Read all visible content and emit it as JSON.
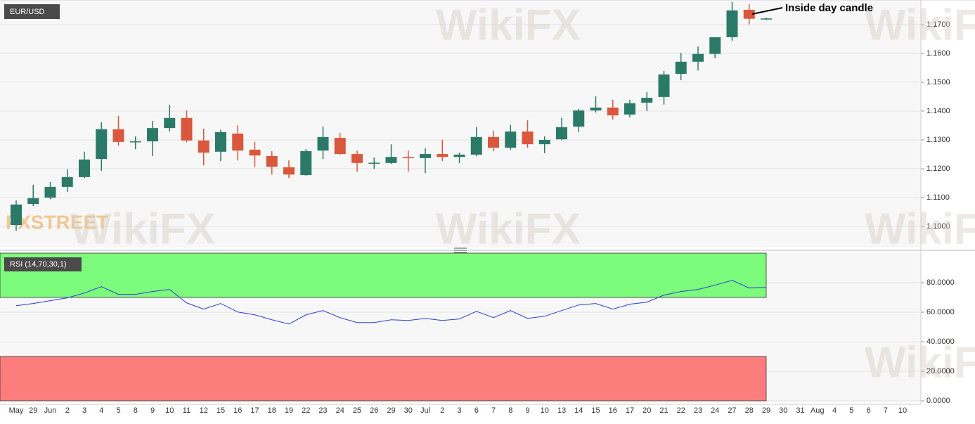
{
  "chart_data": [
    {
      "type": "candlestick",
      "title": "EUR/USD",
      "annotation": "Inside day candle",
      "watermark": "FXSTREET",
      "logo": "WikiFX",
      "categories": [
        "May",
        "29",
        "Jun",
        "2",
        "3",
        "4",
        "5",
        "8",
        "9",
        "10",
        "11",
        "12",
        "15",
        "16",
        "17",
        "18",
        "19",
        "22",
        "23",
        "24",
        "25",
        "26",
        "29",
        "30",
        "Jul",
        "2",
        "3",
        "6",
        "7",
        "8",
        "9",
        "10",
        "13",
        "14",
        "15",
        "16",
        "17",
        "20",
        "21",
        "22",
        "23",
        "24",
        "27",
        "28",
        "29",
        "30",
        "31",
        "Aug",
        "4",
        "5",
        "6",
        "7",
        "10"
      ],
      "open": [
        1.1005,
        1.1078,
        1.11,
        1.1137,
        1.1171,
        1.1234,
        1.1337,
        1.1293,
        1.1295,
        1.1341,
        1.1376,
        1.1298,
        1.1259,
        1.1322,
        1.1266,
        1.1244,
        1.1205,
        1.1178,
        1.1263,
        1.1307,
        1.1251,
        1.1219,
        1.122,
        1.1241,
        1.1237,
        1.1251,
        1.1241,
        1.1249,
        1.131,
        1.1273,
        1.1329,
        1.1285,
        1.1302,
        1.1346,
        1.1402,
        1.1412,
        1.1388,
        1.1429,
        1.1449,
        1.1529,
        1.1571,
        1.1598,
        1.1656,
        1.1751,
        1.1719,
        null,
        null,
        null,
        null,
        null,
        null,
        null,
        null
      ],
      "high": [
        1.109,
        1.1144,
        1.1154,
        1.1198,
        1.1259,
        1.1361,
        1.1383,
        1.1312,
        1.1366,
        1.1422,
        1.1402,
        1.1339,
        1.1334,
        1.1351,
        1.1293,
        1.1261,
        1.1229,
        1.1268,
        1.1346,
        1.1324,
        1.1263,
        1.1239,
        1.1285,
        1.1263,
        1.1271,
        1.13,
        1.1256,
        1.1344,
        1.1332,
        1.1351,
        1.1368,
        1.1312,
        1.1376,
        1.1407,
        1.1451,
        1.1439,
        1.1439,
        1.1466,
        1.1539,
        1.1602,
        1.1624,
        1.1656,
        1.1778,
        1.1771,
        1.1724,
        null,
        null,
        null,
        null,
        null,
        null,
        null,
        null
      ],
      "low": [
        1.0985,
        1.1071,
        1.1095,
        1.112,
        1.1168,
        1.1193,
        1.128,
        1.1268,
        1.1244,
        1.1329,
        1.1293,
        1.1212,
        1.1227,
        1.1229,
        1.1207,
        1.118,
        1.1168,
        1.1176,
        1.1234,
        1.1249,
        1.119,
        1.12,
        1.1217,
        1.119,
        1.1185,
        1.1227,
        1.122,
        1.1244,
        1.1261,
        1.1266,
        1.1273,
        1.1254,
        1.13,
        1.1327,
        1.1395,
        1.1371,
        1.1378,
        1.14,
        1.1422,
        1.1507,
        1.1541,
        1.1583,
        1.1644,
        1.17,
        1.1715,
        null,
        null,
        null,
        null,
        null,
        null,
        null,
        null
      ],
      "close": [
        1.1076,
        1.1098,
        1.1137,
        1.1171,
        1.1232,
        1.1337,
        1.1293,
        1.1295,
        1.1341,
        1.1376,
        1.1298,
        1.1256,
        1.1327,
        1.1263,
        1.1246,
        1.1207,
        1.118,
        1.1261,
        1.131,
        1.1251,
        1.122,
        1.1221,
        1.1241,
        1.1237,
        1.1251,
        1.1241,
        1.1249,
        1.131,
        1.1273,
        1.1329,
        1.1285,
        1.13,
        1.1344,
        1.1402,
        1.1412,
        1.1385,
        1.1427,
        1.1446,
        1.1527,
        1.1571,
        1.1598,
        1.1656,
        1.1749,
        1.172,
        1.1721,
        null,
        null,
        null,
        null,
        null,
        null,
        null,
        null
      ],
      "up_color": "#2b7a68",
      "down_color": "#d9573c",
      "ylim": [
        1.0927,
        1.1785
      ],
      "yticks": [
        {
          "value": 1.1,
          "label": "1.1000"
        },
        {
          "value": 1.11,
          "label": "1.1100"
        },
        {
          "value": 1.12,
          "label": "1.1200"
        },
        {
          "value": 1.13,
          "label": "1.1300"
        },
        {
          "value": 1.14,
          "label": "1.1400"
        },
        {
          "value": 1.15,
          "label": "1.1500"
        },
        {
          "value": 1.16,
          "label": "1.1600"
        },
        {
          "value": 1.17,
          "label": "1.1700"
        }
      ],
      "grid": true
    },
    {
      "type": "line",
      "title": "RSI (14,70,30,1)",
      "color": "#2b3fd0",
      "values": [
        64.4,
        65.9,
        67.8,
        69.7,
        73.0,
        77.3,
        72.1,
        72.1,
        74.0,
        75.4,
        66.3,
        62.1,
        65.9,
        60.1,
        58.2,
        54.9,
        52.0,
        58.2,
        61.1,
        56.3,
        53.0,
        53.0,
        54.9,
        54.4,
        55.8,
        54.4,
        55.4,
        60.6,
        56.3,
        61.1,
        55.8,
        57.3,
        61.1,
        64.9,
        65.9,
        62.1,
        65.4,
        66.8,
        71.6,
        74.0,
        75.4,
        78.3,
        81.6,
        76.4,
        76.8,
        null,
        null,
        null,
        null,
        null,
        null,
        null,
        null
      ],
      "overbought": 70,
      "oversold": 30,
      "overbought_color": "#7dfb7d",
      "oversold_color": "#fd7d7d",
      "ylim": [
        0,
        100
      ],
      "yticks": [
        {
          "value": 0,
          "label": "0.0000"
        },
        {
          "value": 20,
          "label": "20.0000"
        },
        {
          "value": 40,
          "label": "40.0000"
        },
        {
          "value": 60,
          "label": "60.0000"
        },
        {
          "value": 80,
          "label": "80.0000"
        }
      ],
      "grid": true
    }
  ]
}
